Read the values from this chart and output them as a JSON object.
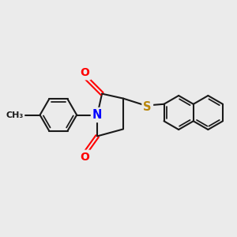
{
  "bg_color": "#ebebeb",
  "bond_color": "#1a1a1a",
  "N_color": "#0000ff",
  "O_color": "#ff0000",
  "S_color": "#b8860b",
  "bond_width": 1.5,
  "figsize": [
    3.0,
    3.0
  ],
  "dpi": 100,
  "xlim": [
    0,
    10
  ],
  "ylim": [
    0,
    10
  ]
}
